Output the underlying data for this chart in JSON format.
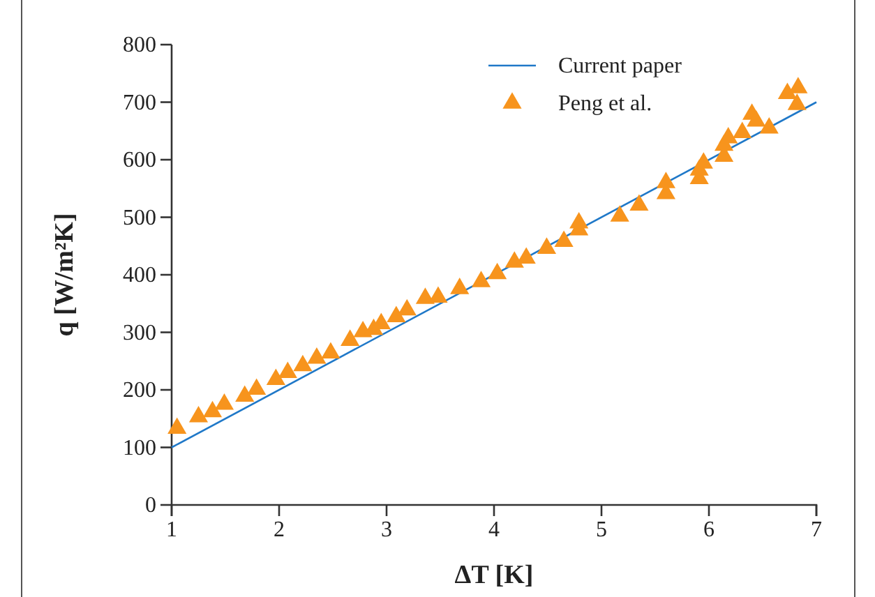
{
  "chart_data": {
    "type": "scatter",
    "xlabel": "ΔT [K]",
    "ylabel": "q [W/m²K]",
    "xlim": [
      1,
      7
    ],
    "xticks": [
      1,
      2,
      3,
      4,
      5,
      6,
      7
    ],
    "ylim": [
      0,
      800
    ],
    "yticks": [
      0,
      100,
      200,
      300,
      400,
      500,
      600,
      700,
      800
    ],
    "grid": false,
    "legend": "top right",
    "series": [
      {
        "name": "Current paper",
        "type": "line",
        "color": "#1f78c8",
        "marker": "none",
        "line_style": "solid",
        "x": [
          1,
          7
        ],
        "values": [
          100,
          700
        ]
      },
      {
        "name": "Peng et al.",
        "color": "#f7941d",
        "marker": "triangle",
        "x": [
          1.05,
          1.25,
          1.38,
          1.49,
          1.68,
          1.79,
          1.97,
          2.08,
          2.22,
          2.35,
          2.48,
          2.66,
          2.78,
          2.88,
          2.95,
          3.09,
          3.19,
          3.36,
          3.48,
          3.68,
          3.88,
          4.03,
          4.19,
          4.3,
          4.49,
          4.65,
          4.79,
          4.79,
          5.17,
          5.35,
          5.6,
          5.6,
          5.91,
          5.91,
          5.95,
          6.14,
          6.14,
          6.18,
          6.31,
          6.4,
          6.44,
          6.56,
          6.73,
          6.83,
          6.82
        ],
        "values": [
          133,
          153,
          162,
          175,
          189,
          201,
          218,
          230,
          242,
          255,
          264,
          286,
          301,
          305,
          315,
          327,
          339,
          359,
          361,
          376,
          388,
          402,
          422,
          429,
          446,
          458,
          478,
          490,
          502,
          521,
          541,
          560,
          567,
          582,
          594,
          606,
          625,
          638,
          647,
          679,
          667,
          655,
          715,
          725,
          696
        ]
      }
    ]
  }
}
